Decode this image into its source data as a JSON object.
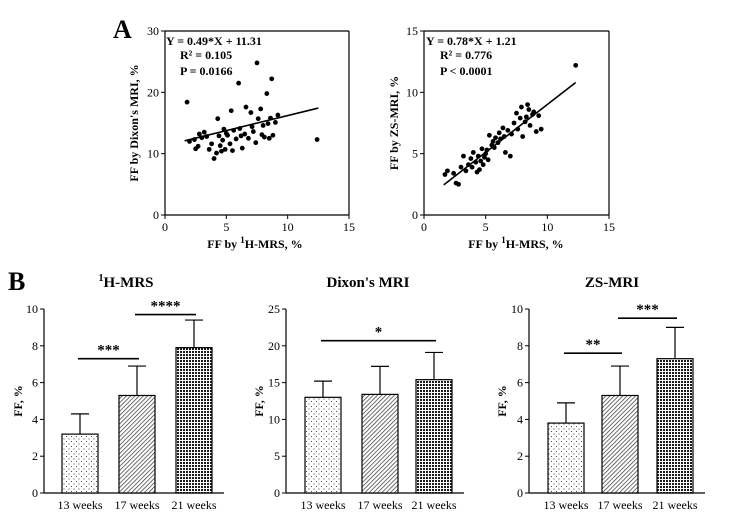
{
  "panel_labels": {
    "a": "A",
    "b": "B"
  },
  "chart_data": [
    {
      "id": "scatter_dixon",
      "type": "scatter",
      "xlabel_main": "FF by ",
      "xlabel_sup": "1",
      "xlabel_rest": "H-MRS, %",
      "ylabel": "FF by Dixon's MRI, %",
      "xlim": [
        0,
        15
      ],
      "ylim": [
        0,
        30
      ],
      "xticks": [
        "0",
        "5",
        "10",
        "15"
      ],
      "yticks": [
        "0",
        "10",
        "20",
        "30"
      ],
      "fit": {
        "slope": 0.49,
        "intercept": 11.31,
        "x_range": [
          1.6,
          12.5
        ]
      },
      "annotations": [
        "Y = 0.49*X + 11.31",
        "R² = 0.105",
        "P = 0.0166"
      ],
      "points": [
        [
          1.8,
          18.4
        ],
        [
          2.0,
          12.0
        ],
        [
          2.4,
          12.3
        ],
        [
          2.5,
          10.8
        ],
        [
          2.7,
          11.2
        ],
        [
          2.8,
          13.2
        ],
        [
          3.0,
          12.6
        ],
        [
          3.2,
          13.5
        ],
        [
          3.4,
          12.8
        ],
        [
          3.6,
          10.7
        ],
        [
          3.8,
          11.6
        ],
        [
          4.0,
          9.2
        ],
        [
          4.2,
          10.1
        ],
        [
          4.3,
          15.7
        ],
        [
          4.4,
          12.9
        ],
        [
          4.5,
          11.3
        ],
        [
          4.6,
          10.4
        ],
        [
          4.7,
          12.2
        ],
        [
          4.8,
          14.0
        ],
        [
          4.9,
          10.7
        ],
        [
          5.0,
          13.3
        ],
        [
          5.1,
          13.0
        ],
        [
          5.3,
          11.6
        ],
        [
          5.4,
          17.0
        ],
        [
          5.5,
          10.5
        ],
        [
          5.6,
          13.8
        ],
        [
          5.8,
          12.4
        ],
        [
          6.0,
          21.5
        ],
        [
          6.1,
          14.1
        ],
        [
          6.2,
          12.9
        ],
        [
          6.3,
          10.9
        ],
        [
          6.5,
          13.2
        ],
        [
          6.6,
          17.6
        ],
        [
          6.8,
          12.5
        ],
        [
          7.0,
          16.7
        ],
        [
          7.1,
          14.4
        ],
        [
          7.2,
          13.6
        ],
        [
          7.4,
          11.8
        ],
        [
          7.5,
          24.8
        ],
        [
          7.6,
          15.7
        ],
        [
          7.8,
          17.3
        ],
        [
          7.9,
          13.1
        ],
        [
          8.0,
          14.6
        ],
        [
          8.1,
          12.7
        ],
        [
          8.3,
          19.8
        ],
        [
          8.4,
          14.9
        ],
        [
          8.5,
          12.5
        ],
        [
          8.6,
          15.8
        ],
        [
          8.7,
          22.2
        ],
        [
          8.8,
          13.0
        ],
        [
          9.0,
          15.1
        ],
        [
          9.2,
          16.3
        ],
        [
          12.4,
          12.3
        ]
      ]
    },
    {
      "id": "scatter_zs",
      "type": "scatter",
      "xlabel_main": "FF by ",
      "xlabel_sup": "1",
      "xlabel_rest": "H-MRS, %",
      "ylabel": "FF by ZS-MRI, %",
      "xlim": [
        0,
        15
      ],
      "ylim": [
        0,
        15
      ],
      "xticks": [
        "0",
        "5",
        "10",
        "15"
      ],
      "yticks": [
        "0",
        "5",
        "10",
        "15"
      ],
      "fit": {
        "slope": 0.78,
        "intercept": 1.21,
        "x_range": [
          1.6,
          12.3
        ]
      },
      "annotations": [
        "Y = 0.78*X + 1.21",
        "R² = 0.776",
        "P < 0.0001"
      ],
      "points": [
        [
          1.7,
          3.3
        ],
        [
          1.9,
          3.6
        ],
        [
          2.4,
          3.4
        ],
        [
          2.6,
          2.6
        ],
        [
          2.8,
          2.5
        ],
        [
          3.0,
          3.9
        ],
        [
          3.2,
          4.8
        ],
        [
          3.4,
          3.6
        ],
        [
          3.6,
          4.1
        ],
        [
          3.8,
          4.6
        ],
        [
          3.9,
          3.9
        ],
        [
          4.0,
          5.1
        ],
        [
          4.2,
          4.3
        ],
        [
          4.3,
          3.5
        ],
        [
          4.4,
          4.8
        ],
        [
          4.5,
          3.7
        ],
        [
          4.6,
          4.4
        ],
        [
          4.7,
          5.4
        ],
        [
          4.8,
          4.1
        ],
        [
          4.9,
          4.7
        ],
        [
          5.0,
          5.0
        ],
        [
          5.1,
          5.3
        ],
        [
          5.2,
          4.5
        ],
        [
          5.3,
          6.5
        ],
        [
          5.5,
          5.7
        ],
        [
          5.6,
          6.0
        ],
        [
          5.7,
          5.5
        ],
        [
          5.8,
          6.3
        ],
        [
          6.0,
          5.9
        ],
        [
          6.1,
          6.7
        ],
        [
          6.2,
          6.2
        ],
        [
          6.4,
          7.1
        ],
        [
          6.5,
          6.4
        ],
        [
          6.6,
          5.1
        ],
        [
          6.8,
          6.9
        ],
        [
          7.0,
          4.8
        ],
        [
          7.1,
          6.6
        ],
        [
          7.3,
          7.5
        ],
        [
          7.5,
          8.3
        ],
        [
          7.6,
          7.0
        ],
        [
          7.8,
          7.9
        ],
        [
          7.9,
          8.8
        ],
        [
          8.0,
          6.4
        ],
        [
          8.2,
          7.6
        ],
        [
          8.3,
          8.0
        ],
        [
          8.4,
          9.0
        ],
        [
          8.5,
          8.6
        ],
        [
          8.6,
          7.3
        ],
        [
          8.8,
          8.2
        ],
        [
          8.9,
          8.4
        ],
        [
          9.1,
          6.8
        ],
        [
          9.3,
          8.1
        ],
        [
          9.5,
          7.0
        ],
        [
          12.3,
          12.2
        ]
      ]
    },
    {
      "id": "bar_hmrs",
      "type": "bar",
      "title_sup": "1",
      "title_rest": "H-MRS",
      "ylabel": "FF, %",
      "categories": [
        "13 weeks",
        "17 weeks",
        "21 weeks"
      ],
      "values": [
        3.2,
        5.3,
        7.9
      ],
      "errors": [
        1.1,
        1.6,
        1.5
      ],
      "ylim": [
        0,
        10
      ],
      "yticks": [
        "0",
        "2",
        "4",
        "6",
        "8",
        "10"
      ],
      "significance": [
        {
          "from": 0,
          "to": 1,
          "y": 7.3,
          "label": "***"
        },
        {
          "from": 1,
          "to": 2,
          "y": 9.7,
          "label": "****"
        }
      ]
    },
    {
      "id": "bar_dixon",
      "type": "bar",
      "title": "Dixon's MRI",
      "ylabel": "FF, %",
      "categories": [
        "13 weeks",
        "17 weeks",
        "21 weeks"
      ],
      "values": [
        13.0,
        13.4,
        15.4
      ],
      "errors": [
        2.2,
        3.8,
        3.7
      ],
      "ylim": [
        0,
        25
      ],
      "yticks": [
        "0",
        "5",
        "10",
        "15",
        "20",
        "25"
      ],
      "significance": [
        {
          "from": 0,
          "to": 2,
          "y": 20.7,
          "label": "*"
        }
      ]
    },
    {
      "id": "bar_zs",
      "type": "bar",
      "title": "ZS-MRI",
      "ylabel": "FF, %",
      "categories": [
        "13 weeks",
        "17 weeks",
        "21 weeks"
      ],
      "values": [
        3.8,
        5.3,
        7.3
      ],
      "errors": [
        1.1,
        1.6,
        1.7
      ],
      "ylim": [
        0,
        10
      ],
      "yticks": [
        "0",
        "2",
        "4",
        "6",
        "8",
        "10"
      ],
      "significance": [
        {
          "from": 0,
          "to": 1,
          "y": 7.6,
          "label": "**"
        },
        {
          "from": 1,
          "to": 2,
          "y": 9.5,
          "label": "***"
        }
      ]
    }
  ]
}
